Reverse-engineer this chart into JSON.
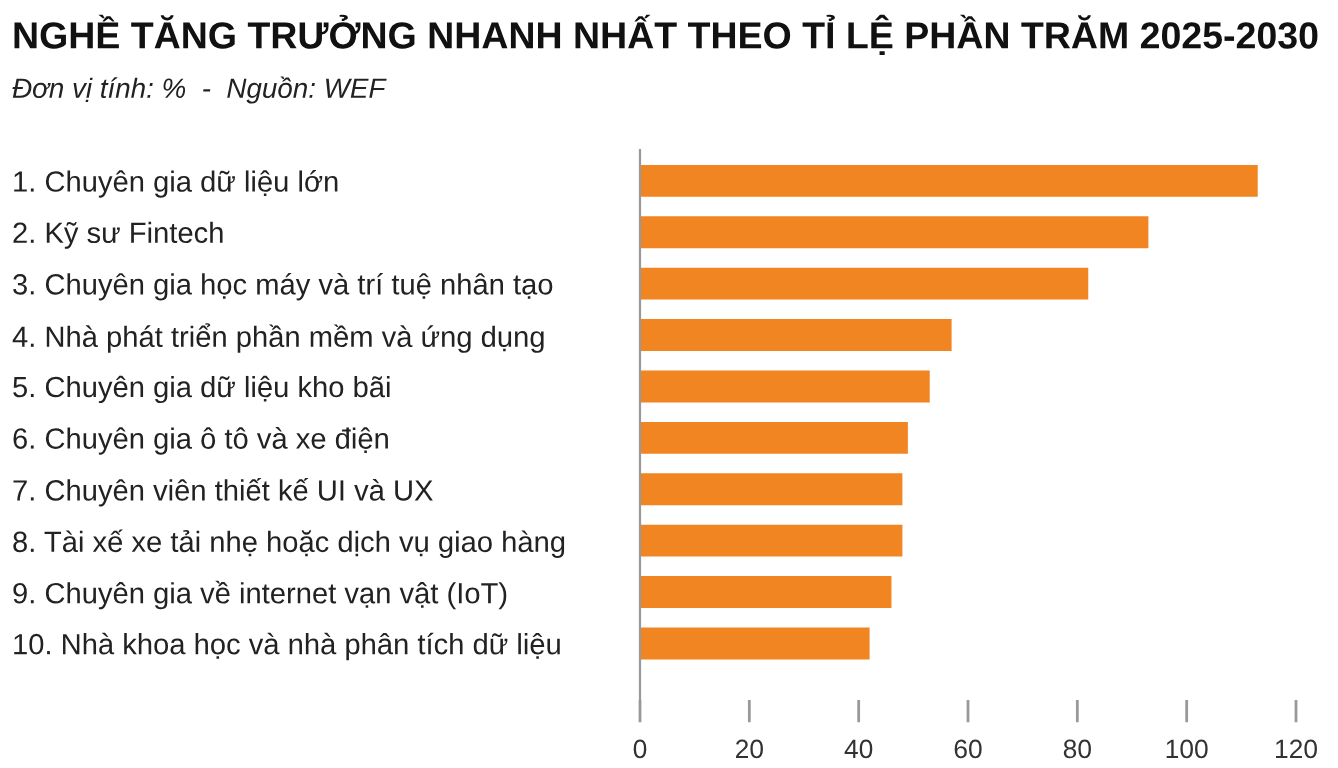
{
  "chart_data": {
    "type": "bar",
    "orientation": "horizontal",
    "title": "NGHỀ TĂNG TRƯỞNG NHANH NHẤT THEO TỈ LỆ PHẦN TRĂM 2025-2030",
    "subtitle": "Đơn vị tính: %  -  Nguồn: WEF",
    "categories": [
      "1. Chuyên gia dữ liệu lớn",
      "2. Kỹ sư Fintech",
      "3. Chuyên gia học máy và trí tuệ nhân tạo",
      "4. Nhà phát triển phần mềm và ứng dụng",
      "5. Chuyên gia dữ liệu kho bãi",
      "6. Chuyên gia ô tô và xe điện",
      "7. Chuyên viên thiết kế UI và UX",
      "8. Tài xế xe tải nhẹ hoặc dịch vụ giao hàng",
      "9. Chuyên gia về internet vạn vật (IoT)",
      "10. Nhà khoa học và nhà phân tích dữ liệu"
    ],
    "values": [
      113,
      93,
      82,
      57,
      53,
      49,
      48,
      48,
      46,
      42
    ],
    "color": "#f08522",
    "xlim": [
      0,
      120
    ],
    "xticks": [
      0,
      20,
      40,
      60,
      80,
      100,
      120
    ],
    "grid": false,
    "legend": false
  }
}
